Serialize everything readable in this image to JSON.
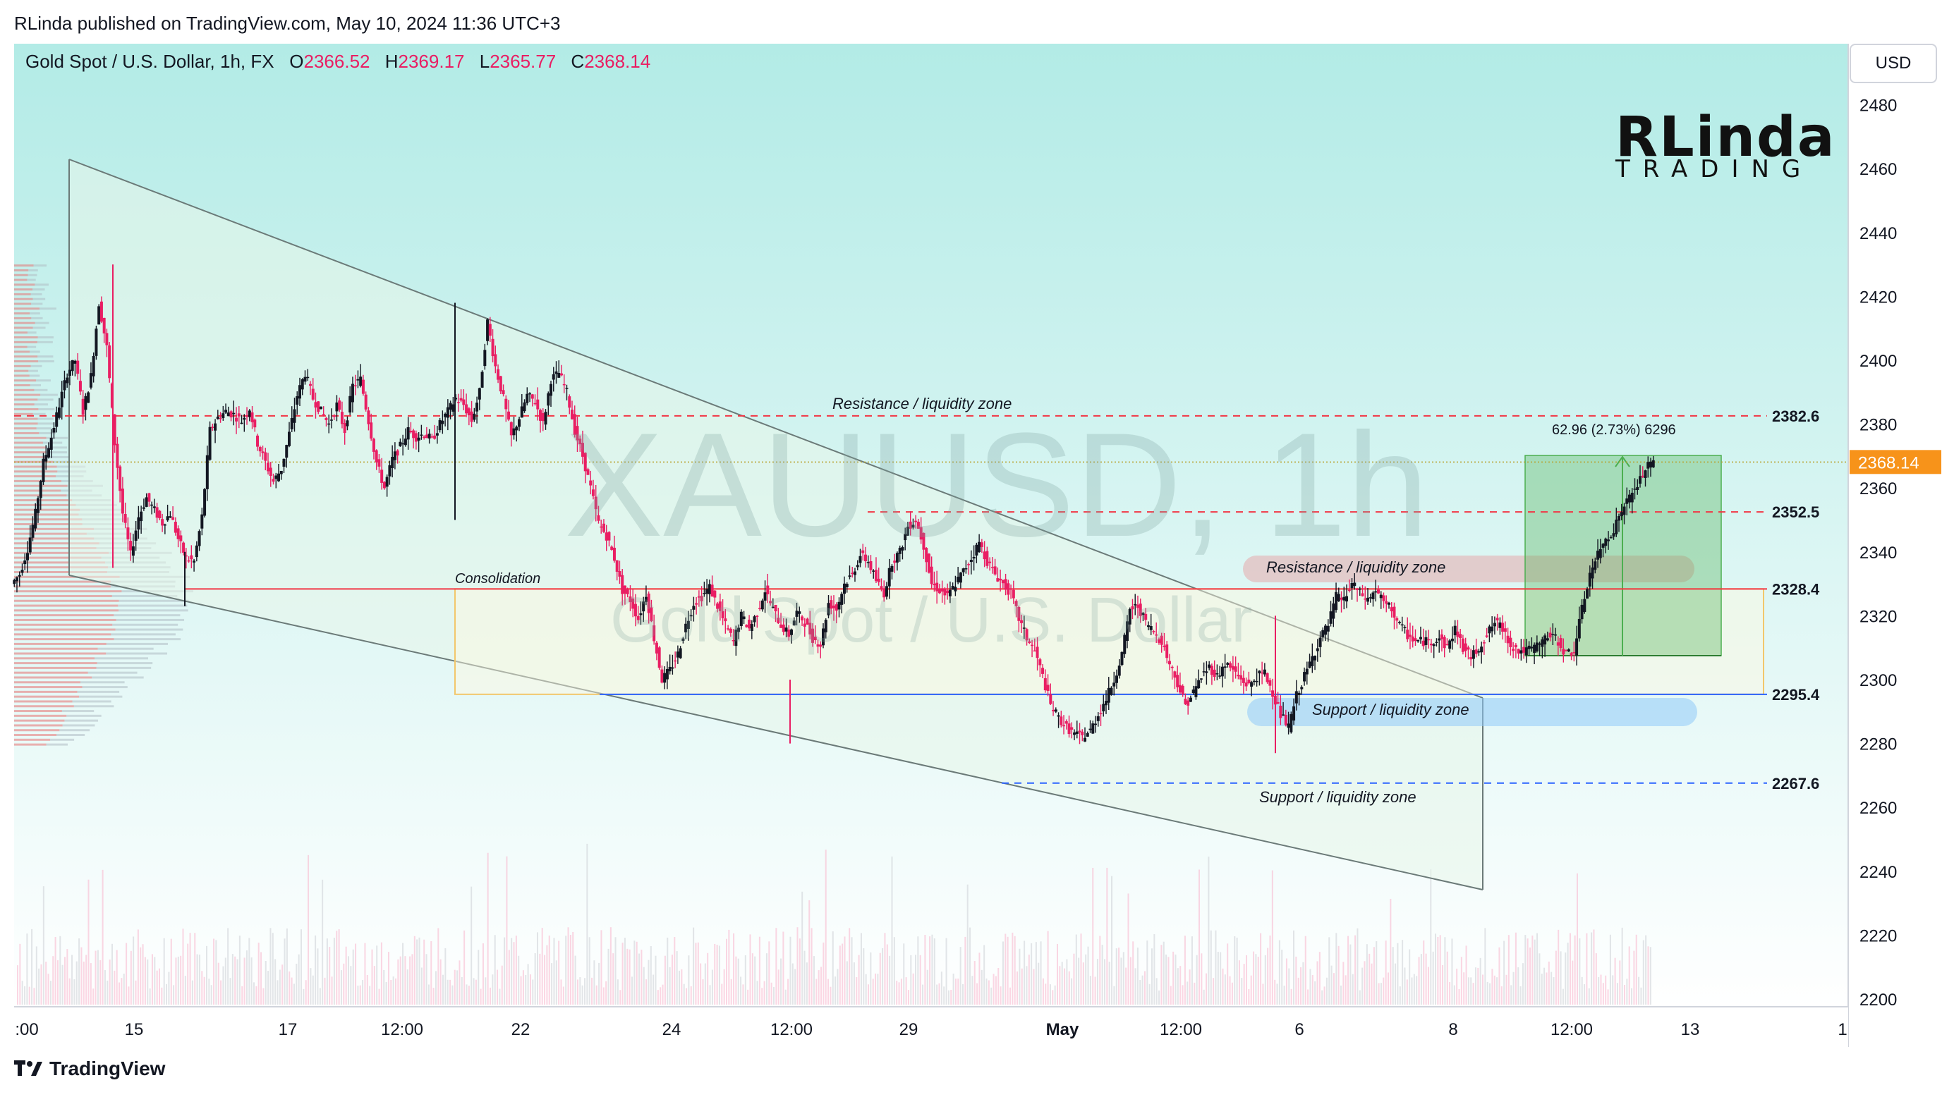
{
  "header": {
    "published": "RLinda published on TradingView.com, May 10, 2024 11:36 UTC+3"
  },
  "legend": {
    "title": "Gold Spot / U.S. Dollar, 1h, FX",
    "o_label": "O",
    "o_value": "2366.52",
    "h_label": "H",
    "h_value": "2369.17",
    "l_label": "L",
    "l_value": "2365.77",
    "c_label": "C",
    "c_value": "2368.14"
  },
  "currency_button": "USD",
  "watermark": {
    "symbol": "XAUUSD, 1h",
    "name": "Gold Spot / U.S. Dollar"
  },
  "brand": {
    "top": "RLinda",
    "bottom": "TRADING"
  },
  "footer": {
    "logo_text": "TradingView",
    "logo_icon": "tradingview-logo-icon"
  },
  "colors": {
    "up": "#131722",
    "down": "#e91e63",
    "resistance": "#f23645",
    "support": "#2962ff",
    "current_price_tag": "#f7931a",
    "gradient_top": "#b2ebe6",
    "gradient_bottom": "#ffffff",
    "long_position": "#4caf50"
  },
  "chart_data": {
    "type": "candlestick",
    "title": "Gold Spot / U.S. Dollar, 1h, FX",
    "y_axis": {
      "min": 2200,
      "max": 2490,
      "ticks": [
        2480,
        2460,
        2440,
        2420,
        2400,
        2380,
        2360,
        2340,
        2320,
        2300,
        2280,
        2260,
        2240,
        2220,
        2200
      ]
    },
    "x_axis": {
      "tick_labels": [
        ":00",
        "15",
        "17",
        "12:00",
        "22",
        "24",
        "12:00",
        "29",
        "May",
        "12:00",
        "6",
        "8",
        "12:00",
        "13",
        "1"
      ]
    },
    "ohlc_last": {
      "open": 2366.52,
      "high": 2369.17,
      "low": 2365.77,
      "close": 2368.14
    },
    "current_price": 2368.14,
    "levels": [
      {
        "price": 2382.6,
        "label": "2382.6",
        "style": "dashed",
        "color": "#f23645"
      },
      {
        "price": 2352.5,
        "label": "2352.5",
        "style": "dashed",
        "color": "#f23645"
      },
      {
        "price": 2328.4,
        "label": "2328.4",
        "style": "solid",
        "color": "#f23645"
      },
      {
        "price": 2295.4,
        "label": "2295.4",
        "style": "solid",
        "color": "#2962ff"
      },
      {
        "price": 2267.6,
        "label": "2267.6",
        "style": "dashed",
        "color": "#2962ff"
      }
    ],
    "annotations": [
      {
        "text": "Resistance / liquidity zone",
        "price": 2383
      },
      {
        "text": "Resistance / liquidity zone",
        "price": 2337
      },
      {
        "text": "Support / liquidity zone",
        "price": 2291
      },
      {
        "text": "Support / liquidity zone",
        "price": 2261
      },
      {
        "text": "Consolidation",
        "price": 2330
      }
    ],
    "measurement": {
      "text": "62.96 (2.73%) 6296"
    },
    "close_path": [
      2333,
      2341,
      2352,
      2368,
      2376,
      2386,
      2396,
      2400,
      2384,
      2395,
      2418,
      2404,
      2374,
      2352,
      2339,
      2351,
      2357,
      2353,
      2349,
      2352,
      2344,
      2338,
      2337,
      2351,
      2378,
      2382,
      2384,
      2383,
      2381,
      2385,
      2374,
      2368,
      2362,
      2366,
      2377,
      2389,
      2396,
      2388,
      2384,
      2380,
      2386,
      2378,
      2392,
      2394,
      2381,
      2368,
      2360,
      2369,
      2373,
      2378,
      2376,
      2377,
      2375,
      2380,
      2384,
      2388,
      2386,
      2381,
      2390,
      2412,
      2398,
      2388,
      2376,
      2382,
      2389,
      2387,
      2380,
      2394,
      2396,
      2390,
      2378,
      2370,
      2360,
      2349,
      2345,
      2338,
      2328,
      2325,
      2319,
      2327,
      2313,
      2300,
      2303,
      2308,
      2317,
      2324,
      2326,
      2329,
      2323,
      2317,
      2312,
      2320,
      2316,
      2321,
      2328,
      2322,
      2317,
      2314,
      2321,
      2318,
      2313,
      2311,
      2324,
      2322,
      2330,
      2333,
      2339,
      2337,
      2331,
      2327,
      2337,
      2340,
      2348,
      2350,
      2342,
      2330,
      2328,
      2326,
      2330,
      2334,
      2338,
      2343,
      2337,
      2333,
      2330,
      2327,
      2319,
      2313,
      2309,
      2301,
      2292,
      2288,
      2285,
      2283,
      2282,
      2284,
      2289,
      2294,
      2300,
      2308,
      2322,
      2323,
      2318,
      2315,
      2312,
      2305,
      2299,
      2292,
      2296,
      2301,
      2304,
      2301,
      2305,
      2303,
      2300,
      2298,
      2301,
      2302,
      2296,
      2289,
      2285,
      2295,
      2301,
      2307,
      2313,
      2317,
      2326,
      2325,
      2330,
      2327,
      2325,
      2328,
      2324,
      2322,
      2317,
      2314,
      2312,
      2312,
      2312,
      2313,
      2310,
      2316,
      2310,
      2307,
      2310,
      2314,
      2318,
      2316,
      2311,
      2309,
      2309,
      2310,
      2312,
      2314,
      2312,
      2308,
      2309,
      2322,
      2333,
      2339,
      2344,
      2347,
      2353,
      2357,
      2361,
      2366,
      2368
    ]
  }
}
